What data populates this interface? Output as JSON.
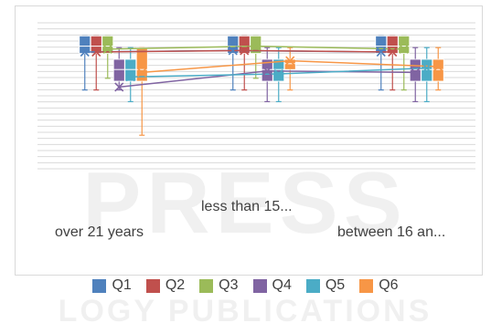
{
  "chart_data": {
    "type": "box",
    "title": "",
    "xlabel": "",
    "ylabel": "",
    "ylim": [
      0,
      10
    ],
    "grid": true,
    "legend_position": "bottom",
    "categories": [
      "less than 15...",
      "over 21 years",
      "between 16 an..."
    ],
    "series": [
      {
        "name": "Q1",
        "color": "#4f81bd",
        "whisker_low": [
          5.4,
          5.4,
          5.4
        ],
        "q1": [
          7.9,
          7.9,
          7.9
        ],
        "median": [
          8.4,
          8.4,
          8.4
        ],
        "q3": [
          9.1,
          9.1,
          9.1
        ],
        "whisker_high": [
          9.1,
          9.1,
          9.1
        ],
        "mean": [
          8.0,
          8.1,
          8.0
        ]
      },
      {
        "name": "Q2",
        "color": "#c0504d",
        "whisker_low": [
          5.4,
          5.4,
          5.4
        ],
        "q1": [
          7.9,
          7.9,
          7.9
        ],
        "median": [
          8.4,
          8.4,
          8.4
        ],
        "q3": [
          9.1,
          9.1,
          9.1
        ],
        "whisker_high": [
          9.1,
          9.1,
          9.1
        ],
        "mean": [
          8.0,
          8.1,
          8.0
        ]
      },
      {
        "name": "Q3",
        "color": "#9bbb59",
        "whisker_low": [
          6.2,
          6.2,
          5.4
        ],
        "q1": [
          7.9,
          7.9,
          7.9
        ],
        "median": [
          8.4,
          8.4,
          8.4
        ],
        "q3": [
          9.1,
          9.1,
          9.1
        ],
        "whisker_high": [
          9.1,
          9.1,
          9.1
        ],
        "mean": [
          8.2,
          8.4,
          8.2
        ]
      },
      {
        "name": "Q4",
        "color": "#8064a2",
        "whisker_low": [
          5.4,
          4.6,
          4.6
        ],
        "q1": [
          6.0,
          6.0,
          6.0
        ],
        "median": [
          6.8,
          6.8,
          6.8
        ],
        "q3": [
          7.5,
          7.5,
          7.5
        ],
        "whisker_high": [
          8.3,
          8.3,
          8.3
        ],
        "mean": [
          5.6,
          6.7,
          6.6
        ]
      },
      {
        "name": "Q5",
        "color": "#4bacc6",
        "whisker_low": [
          4.6,
          4.6,
          4.6
        ],
        "q1": [
          6.0,
          6.0,
          6.0
        ],
        "median": [
          6.8,
          6.8,
          6.8
        ],
        "q3": [
          7.5,
          7.5,
          7.5
        ],
        "whisker_high": [
          8.3,
          8.3,
          8.3
        ],
        "mean": [
          6.3,
          6.5,
          6.9
        ]
      },
      {
        "name": "Q6",
        "color": "#f79646",
        "whisker_low": [
          2.3,
          5.4,
          5.4
        ],
        "q1": [
          6.0,
          6.8,
          6.0
        ],
        "median": [
          6.8,
          7.2,
          6.8
        ],
        "q3": [
          8.3,
          7.5,
          7.5
        ],
        "whisker_high": [
          8.3,
          8.3,
          8.3
        ],
        "mean": [
          6.6,
          7.4,
          7.0
        ]
      }
    ]
  }
}
